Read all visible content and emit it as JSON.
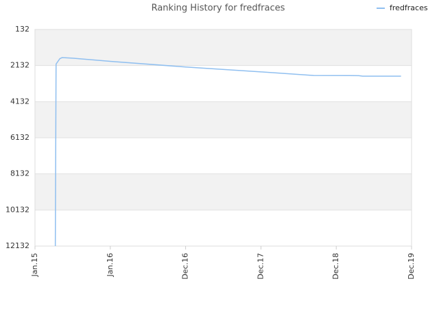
{
  "chart_data": {
    "type": "line",
    "title": "Ranking History for fredfraces",
    "series": [
      {
        "name": "fredfraces",
        "color": "#8fbff0",
        "x": [
          0.27,
          0.28,
          0.33,
          0.36,
          0.5,
          1,
          2,
          3,
          3.7,
          4.3,
          4.35,
          4.86
        ],
        "values": [
          12132,
          2050,
          1750,
          1690,
          1720,
          1900,
          2210,
          2480,
          2680,
          2690,
          2720,
          2720
        ]
      }
    ],
    "xlim": [
      0,
      5
    ],
    "xticks": [
      {
        "value": 0,
        "label": "Jan.15"
      },
      {
        "value": 1,
        "label": "Jan.16"
      },
      {
        "value": 2,
        "label": "Dec.16"
      },
      {
        "value": 3,
        "label": "Dec.17"
      },
      {
        "value": 4,
        "label": "Dec.18"
      },
      {
        "value": 5,
        "label": "Dec.19"
      }
    ],
    "ylim": [
      132,
      12132
    ],
    "y_inverted": true,
    "yticks": [
      132,
      2132,
      4132,
      6132,
      8132,
      10132,
      12132
    ],
    "grid": true,
    "legend": "top-right"
  }
}
